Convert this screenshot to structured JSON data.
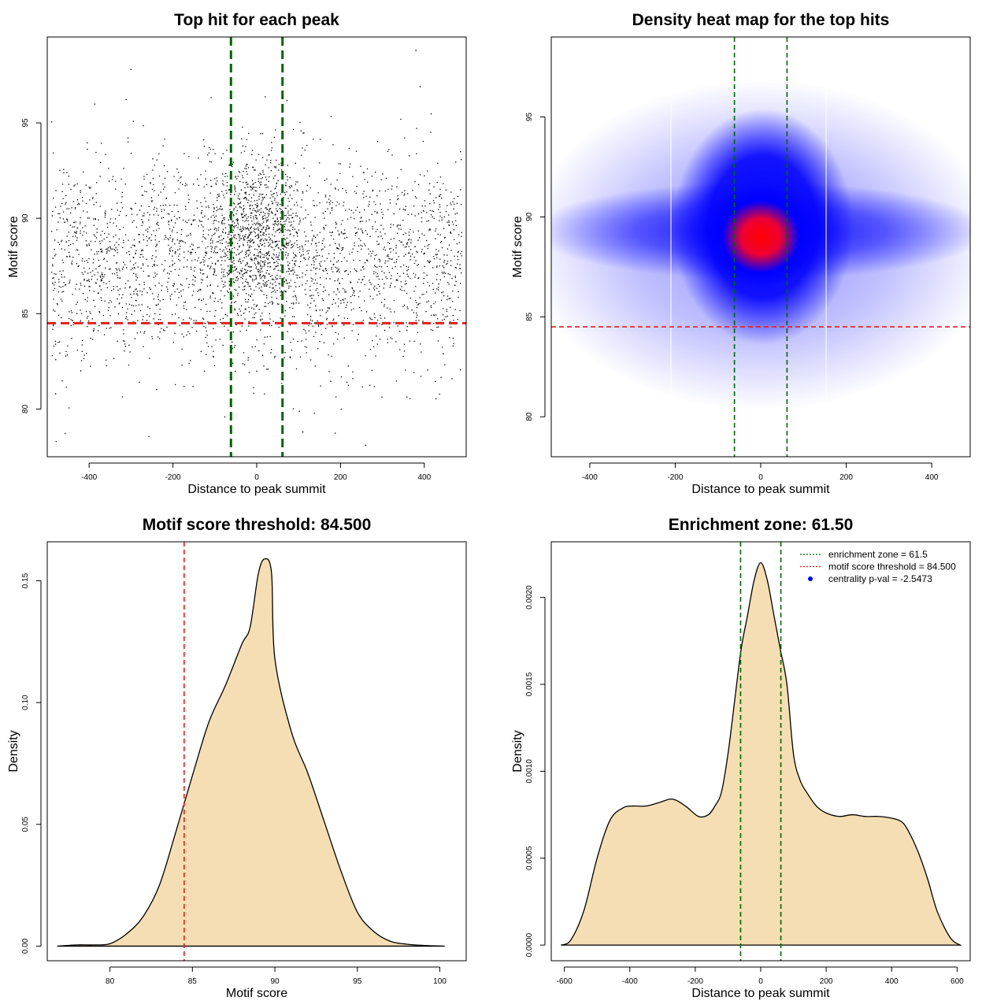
{
  "chart_data": [
    {
      "type": "scatter",
      "title": "Top hit for each peak",
      "xlabel": "Distance to peak summit",
      "ylabel": "Motif score",
      "xlim": [
        -500,
        500
      ],
      "ylim": [
        77.5,
        99.5
      ],
      "x_ticks": [
        -400,
        -200,
        0,
        200,
        400
      ],
      "y_ticks": [
        80,
        85,
        90,
        95
      ],
      "points_note": "several thousand points; dense band near x=0 and y≈89",
      "points_sample": [
        [
          -480,
          80.8
        ],
        [
          -280,
          81.4
        ],
        [
          -420,
          82.0
        ],
        [
          0,
          90.0
        ],
        [
          -300,
          97.8
        ],
        [
          390,
          96.9
        ],
        [
          380,
          98.8
        ],
        [
          -430,
          89.3
        ],
        [
          260,
          78.1
        ],
        [
          110,
          78.8
        ]
      ],
      "vlines": [
        -61.5,
        61.5
      ],
      "hline": 84.5,
      "colors": {
        "points": "#000000",
        "vlines": "#006400",
        "hline": "#e02020"
      }
    },
    {
      "type": "heatmap",
      "title": "Density heat map for the top hits",
      "xlabel": "Distance to peak summit",
      "ylabel": "Motif score",
      "xlim": [
        -490,
        490
      ],
      "ylim": [
        78,
        99
      ],
      "x_ticks": [
        -400,
        -200,
        0,
        200,
        400
      ],
      "y_ticks": [
        80,
        85,
        90,
        95
      ],
      "peak": {
        "x": 0,
        "y": 89
      },
      "vlines": [
        -61.5,
        61.5
      ],
      "hline": 84.5,
      "colors": {
        "low": "#ffffff",
        "mid": "#0000ff",
        "high": "#ff0000"
      }
    },
    {
      "type": "area",
      "title": "Motif score threshold: 84.500",
      "xlabel": "Motif score",
      "ylabel": "Density",
      "xlim": [
        76.2,
        101.6
      ],
      "ylim": [
        -0.006,
        0.166
      ],
      "x_ticks": [
        80,
        85,
        90,
        95,
        100
      ],
      "y_ticks": [
        0.0,
        0.05,
        0.1,
        0.15
      ],
      "x": [
        76.8,
        78,
        79,
        80,
        81,
        82,
        83,
        84,
        85,
        86,
        87,
        88,
        88.5,
        89,
        89.4,
        89.8,
        90,
        91,
        92,
        93,
        94,
        95,
        96,
        97,
        98,
        99,
        100.3
      ],
      "y": [
        0.0,
        0.0005,
        0.0005,
        0.001,
        0.005,
        0.012,
        0.025,
        0.047,
        0.07,
        0.092,
        0.107,
        0.124,
        0.131,
        0.153,
        0.159,
        0.153,
        0.118,
        0.088,
        0.071,
        0.051,
        0.031,
        0.014,
        0.006,
        0.002,
        0.0008,
        0.0003,
        0.0
      ],
      "vline": 84.5,
      "colors": {
        "fill": "#f5deb3",
        "line": "#000000",
        "vline": "#e02020"
      }
    },
    {
      "type": "area",
      "title": "Enrichment zone: 61.50",
      "xlabel": "Distance to peak summit",
      "ylabel": "Density",
      "xlim": [
        -640,
        640
      ],
      "ylim": [
        -9e-05,
        0.00232
      ],
      "x_ticks": [
        -600,
        -400,
        -200,
        0,
        200,
        400,
        600
      ],
      "y_ticks": [
        0.0,
        0.0005,
        0.001,
        0.0015,
        0.002
      ],
      "x": [
        -610,
        -580,
        -540,
        -500,
        -460,
        -420,
        -390,
        -350,
        -310,
        -270,
        -230,
        -190,
        -160,
        -140,
        -120,
        -100,
        -80,
        -60,
        -40,
        -20,
        0,
        20,
        40,
        60,
        80,
        100,
        120,
        140,
        170,
        200,
        240,
        280,
        320,
        360,
        400,
        430,
        450,
        480,
        510,
        540,
        580,
        610
      ],
      "y": [
        0.0,
        3e-05,
        0.0002,
        0.0005,
        0.00072,
        0.00079,
        0.0008,
        0.0008,
        0.00082,
        0.00084,
        0.0008,
        0.00074,
        0.00075,
        0.0008,
        0.00088,
        0.0011,
        0.0014,
        0.0017,
        0.0019,
        0.0021,
        0.0022,
        0.0021,
        0.0019,
        0.0017,
        0.0015,
        0.0011,
        0.00095,
        0.00088,
        0.0008,
        0.00076,
        0.00074,
        0.00075,
        0.00074,
        0.00074,
        0.00073,
        0.00071,
        0.00066,
        0.00054,
        0.00038,
        0.00019,
        4e-05,
        0.0
      ],
      "vlines": [
        -61.5,
        61.5
      ],
      "colors": {
        "fill": "#f5deb3",
        "line": "#000000",
        "vlines": "#006400"
      },
      "legend": {
        "position": "top-right",
        "entries": [
          {
            "label": "enrichment zone = 61.5",
            "color": "#006400",
            "style": "dotted-line"
          },
          {
            "label": "motif score threshold = 84.500",
            "color": "#e02020",
            "style": "dotted-line"
          },
          {
            "label": "centrality p-val = -2.5473",
            "color": "#0000ff",
            "style": "dot"
          }
        ]
      }
    }
  ]
}
